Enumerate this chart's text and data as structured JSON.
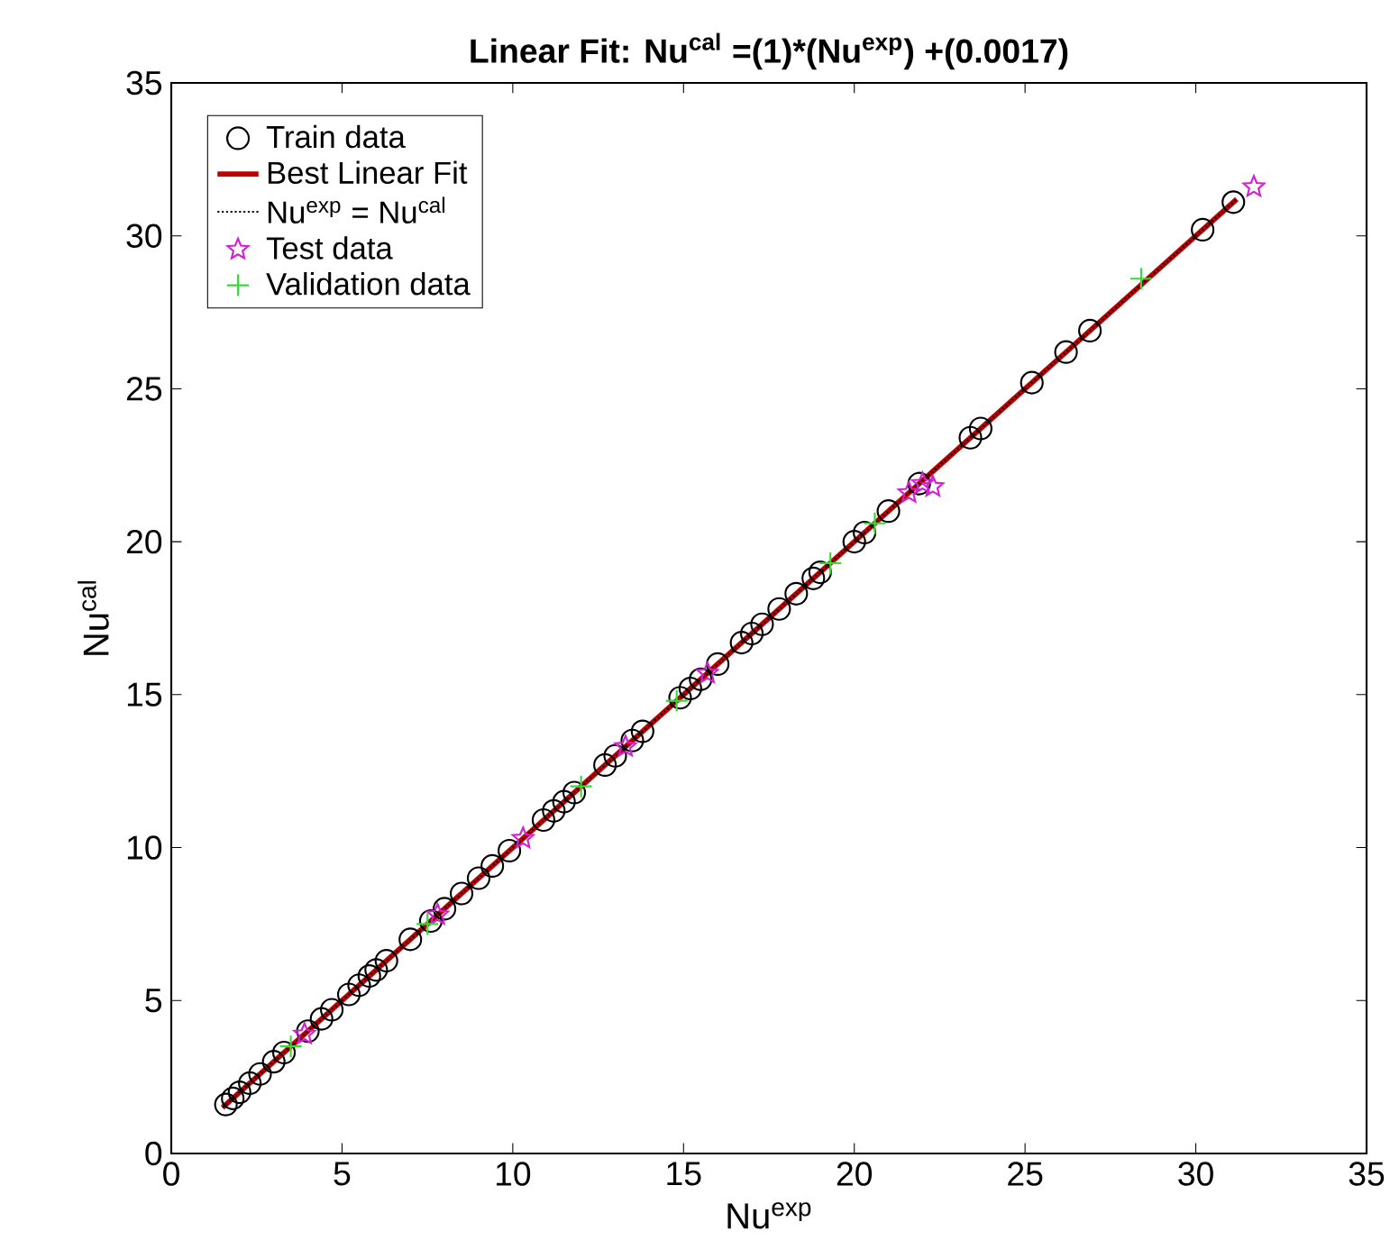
{
  "chart_data": {
    "type": "scatter",
    "title": "Linear Fit: Nu$^{cal}$ =(1)*(Nu$^{exp}$) +(0.0017)",
    "xlabel": "Nu$^{exp}$",
    "ylabel": "Nu$^{cal}$",
    "xlim": [
      0,
      35
    ],
    "ylim": [
      0,
      35
    ],
    "xticks": [
      0,
      5,
      10,
      15,
      20,
      25,
      30,
      35
    ],
    "yticks": [
      0,
      5,
      10,
      15,
      20,
      25,
      30,
      35
    ],
    "legend": "top left",
    "series": [
      {
        "name": "Train data",
        "marker": "circle",
        "color": "#000000",
        "x": [
          1.6,
          1.8,
          2.0,
          2.3,
          2.6,
          3.0,
          3.3,
          4.0,
          4.4,
          4.7,
          5.2,
          5.5,
          5.8,
          6.0,
          6.3,
          7.0,
          7.6,
          8.0,
          8.5,
          9.0,
          9.4,
          9.9,
          10.9,
          11.2,
          11.5,
          11.8,
          12.7,
          13.0,
          13.5,
          13.8,
          14.9,
          15.2,
          15.5,
          16.0,
          16.7,
          17.0,
          17.3,
          17.8,
          18.3,
          18.8,
          19.0,
          20.0,
          20.3,
          21.0,
          21.9,
          23.4,
          23.7,
          25.2,
          26.2,
          26.9,
          30.2,
          31.1
        ],
        "values": [
          1.6,
          1.8,
          2.0,
          2.3,
          2.6,
          3.0,
          3.3,
          4.0,
          4.4,
          4.7,
          5.2,
          5.5,
          5.8,
          6.0,
          6.3,
          7.0,
          7.6,
          8.0,
          8.5,
          9.0,
          9.4,
          9.9,
          10.9,
          11.2,
          11.5,
          11.8,
          12.7,
          13.0,
          13.5,
          13.8,
          14.9,
          15.2,
          15.5,
          16.0,
          16.7,
          17.0,
          17.3,
          17.8,
          18.3,
          18.8,
          19.0,
          20.0,
          20.3,
          21.0,
          21.9,
          23.4,
          23.7,
          25.2,
          26.2,
          26.9,
          30.2,
          31.1
        ]
      },
      {
        "name": "Best Linear Fit",
        "type": "line",
        "marker": "none",
        "line_style": "solid",
        "color": "#c00000",
        "x": [
          1.5,
          31.2
        ],
        "values": [
          1.5,
          31.2
        ]
      },
      {
        "name": "Nu$^{exp}$ = Nu$^{cal}$",
        "type": "line",
        "marker": "none",
        "line_style": "dotted",
        "color": "#000000",
        "x": [
          1.5,
          31.2
        ],
        "values": [
          1.5,
          31.2
        ]
      },
      {
        "name": "Test data",
        "marker": "star",
        "color": "#d020d0",
        "x": [
          3.9,
          7.8,
          10.3,
          13.3,
          15.7,
          21.6,
          22.0,
          22.3,
          31.7
        ],
        "values": [
          3.9,
          7.8,
          10.3,
          13.3,
          15.7,
          21.6,
          21.9,
          21.8,
          31.6
        ]
      },
      {
        "name": "Validation data",
        "marker": "cross",
        "color": "#33dd33",
        "x": [
          3.5,
          7.5,
          12.0,
          14.8,
          19.3,
          20.6,
          28.4
        ],
        "values": [
          3.5,
          7.5,
          12.0,
          14.8,
          19.3,
          20.6,
          28.6
        ]
      }
    ]
  }
}
